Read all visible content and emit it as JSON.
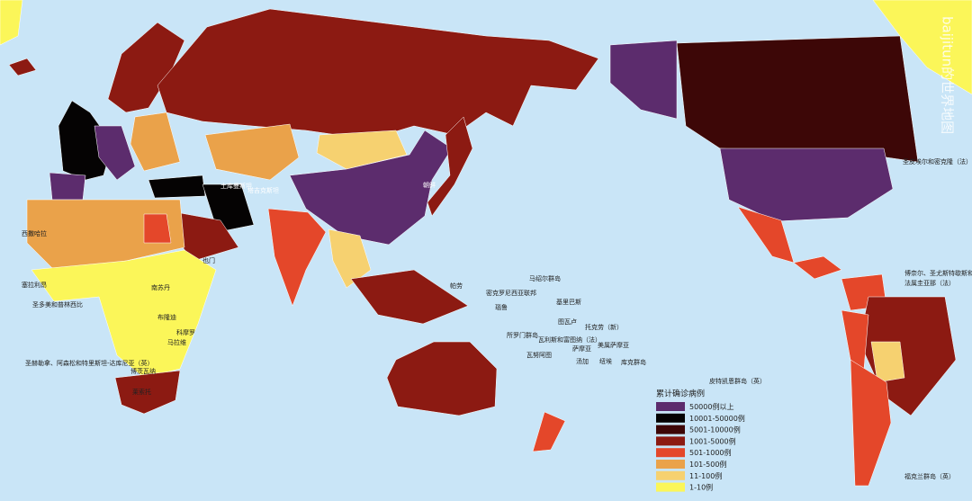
{
  "watermark": "baijitun的世界地图",
  "legend": {
    "title": "累计确诊病例",
    "items": [
      {
        "label": "50000例以上",
        "color": "#5c2c6d"
      },
      {
        "label": "10001-50000例",
        "color": "#050303"
      },
      {
        "label": "5001-10000例",
        "color": "#3d0707"
      },
      {
        "label": "1001-5000例",
        "color": "#8c1a12"
      },
      {
        "label": "501-1000例",
        "color": "#e4472a"
      },
      {
        "label": "101-500例",
        "color": "#eaa24a"
      },
      {
        "label": "11-100例",
        "color": "#f6d170"
      },
      {
        "label": "1-10例",
        "color": "#fbf659"
      }
    ]
  },
  "places": [
    "土库曼斯坦",
    "塔吉克斯坦",
    "朝鲜",
    "也门",
    "南苏丹",
    "布隆迪",
    "科摩罗",
    "马拉维",
    "博茨瓦纳",
    "莱索托",
    "西撒哈拉",
    "塞拉利昂",
    "圣多美和普林西比",
    "圣赫勒拿、阿森松和特里斯坦-达库尼亚（英）",
    "帕劳",
    "密克罗尼西亚联邦",
    "马绍尔群岛",
    "基里巴斯",
    "瑙鲁",
    "所罗门群岛",
    "图瓦卢",
    "托克劳（新）",
    "瓦利斯和富图纳（法）",
    "萨摩亚",
    "美属萨摩亚",
    "瓦努阿图",
    "汤加",
    "纽埃",
    "库克群岛",
    "皮特凯恩群岛（英）",
    "圣皮埃尔和密克隆（法）",
    "博奈尔、圣尤斯特歇斯和萨巴（荷）",
    "法属圭亚那（法）",
    "福克兰群岛（英）"
  ]
}
